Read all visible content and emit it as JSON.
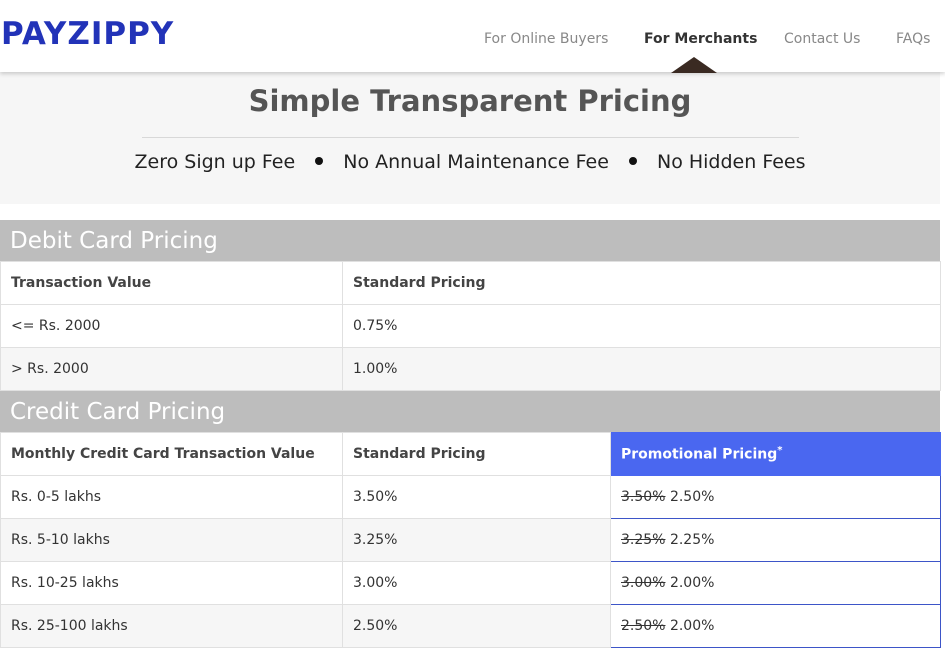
{
  "brand": {
    "logo": "PAYZIPPY",
    "logo_color": "#2233b8"
  },
  "nav": {
    "items": [
      {
        "label": "For Online Buyers"
      },
      {
        "label": "For Merchants",
        "active": true
      },
      {
        "label": "Contact Us"
      },
      {
        "label": "FAQs"
      }
    ]
  },
  "hero": {
    "title": "Simple Transparent Pricing",
    "features": [
      "Zero Sign up Fee",
      "No Annual Maintenance Fee",
      "No Hidden Fees"
    ]
  },
  "debit": {
    "title": "Debit Card Pricing",
    "headers": [
      "Transaction Value",
      "Standard Pricing"
    ],
    "rows": [
      [
        "<= Rs. 2000",
        "0.75%"
      ],
      [
        "> Rs. 2000",
        "1.00%"
      ]
    ]
  },
  "credit": {
    "title": "Credit Card Pricing",
    "headers": [
      "Monthly Credit Card Transaction Value",
      "Standard Pricing",
      "Promotional Pricing",
      "*"
    ],
    "rows": [
      {
        "value": "Rs. 0-5 lakhs",
        "standard": "3.50%",
        "old": "3.50%",
        "promo": "2.50%"
      },
      {
        "value": "Rs. 5-10 lakhs",
        "standard": "3.25%",
        "old": "3.25%",
        "promo": "2.25%"
      },
      {
        "value": "Rs. 10-25 lakhs",
        "standard": "3.00%",
        "old": "3.00%",
        "promo": "2.00%"
      },
      {
        "value": "Rs. 25-100 lakhs",
        "standard": "2.50%",
        "old": "2.50%",
        "promo": "2.00%"
      }
    ]
  },
  "colors": {
    "section_header": "#bdbdbd",
    "promo_header": "#4a67f0",
    "nav_caret": "#3a2a22"
  }
}
